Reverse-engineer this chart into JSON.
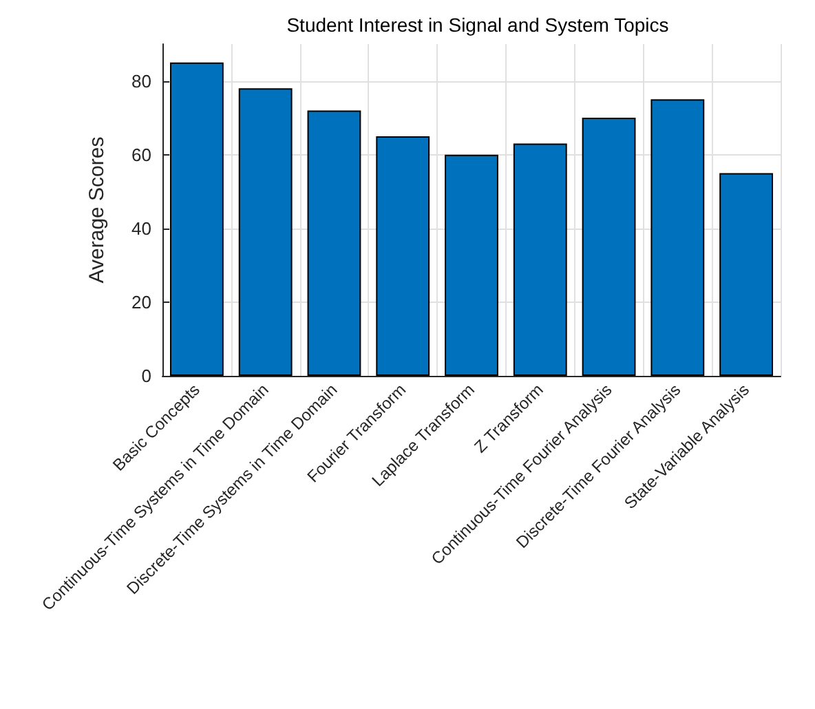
{
  "chart_data": {
    "type": "bar",
    "title": "Student Interest in Signal and System Topics",
    "ylabel": "Average Scores",
    "categories": [
      "Basic Concepts",
      "Continuous-Time Systems in Time Domain",
      "Discrete-Time Systems in Time Domain",
      "Fourier Transform",
      "Laplace Transform",
      "Z Transform",
      "Continuous-Time Fourier Analysis",
      "Discrete-Time Fourier Analysis",
      "State-Variable Analysis"
    ],
    "values": [
      85,
      78,
      72,
      65,
      60,
      63,
      70,
      75,
      55
    ],
    "color": "#0072bd",
    "ylim": [
      0,
      90
    ],
    "yticks": [
      0,
      20,
      40,
      60,
      80
    ],
    "grid": true
  }
}
